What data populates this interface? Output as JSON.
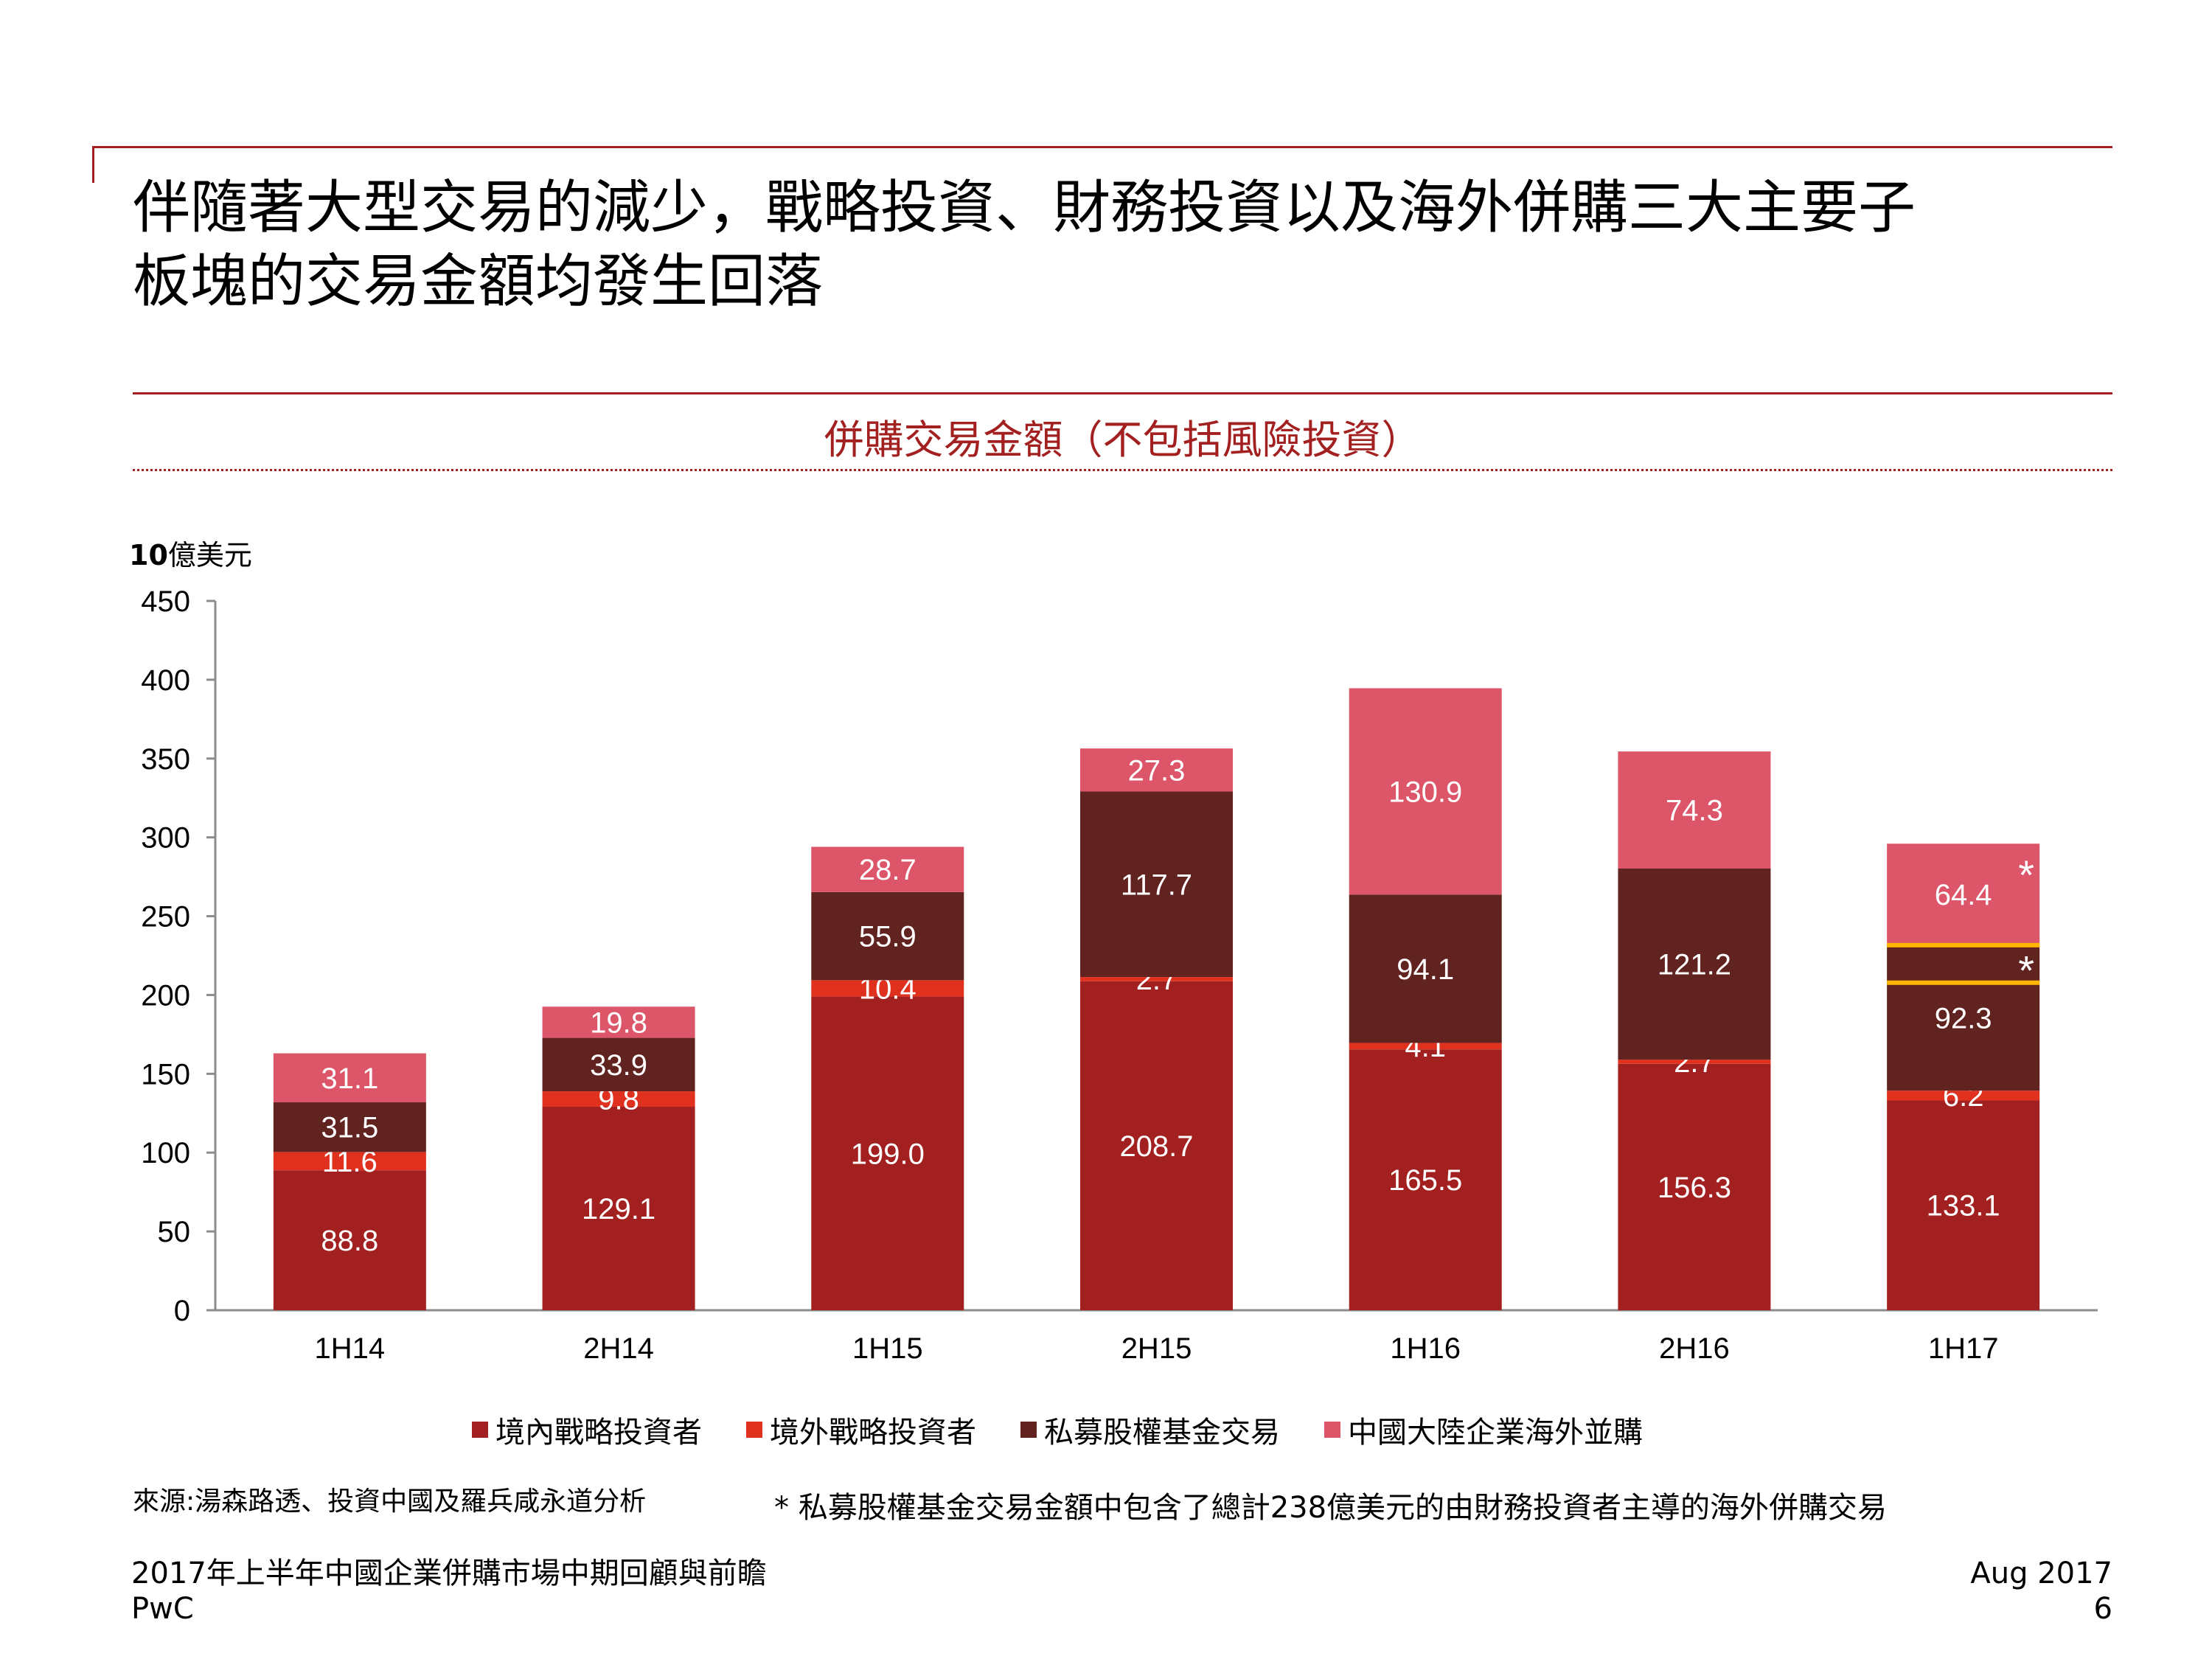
{
  "slide": {
    "title_line1": "伴隨著大型交易的減少，戰略投資、財務投資以及海外併購三大主要子",
    "title_line2": "板塊的交易金額均發生回落",
    "chart_heading": "併購交易金額（不包括風險投資）",
    "source": "來源:湯森路透、投資中國及羅兵咸永道分析",
    "footnote": "* 私募股權基金交易金額中包含了總計238億美元的由財務投資者主導的海外併購交易",
    "footer_title": "2017年上半年中國企業併購市場中期回顧與前瞻",
    "footer_company": "PwC",
    "footer_date": "Aug 2017",
    "page_number": "6"
  },
  "colors": {
    "brand_red": "#a32020",
    "series": [
      "#a32020",
      "#e0301e",
      "#602320",
      "#dc5569"
    ],
    "highlight": "#ffb600"
  },
  "chart_data": {
    "type": "bar",
    "stacked": true,
    "unit_label_bold": "10",
    "unit_label_rest": "億美元",
    "categories": [
      "1H14",
      "2H14",
      "1H15",
      "2H15",
      "1H16",
      "2H16",
      "1H17"
    ],
    "ylim": [
      0,
      450
    ],
    "yticks": [
      0,
      50,
      100,
      150,
      200,
      250,
      300,
      350,
      400,
      450
    ],
    "series": [
      {
        "name": "境內戰略投資者",
        "values": [
          88.8,
          129.1,
          199.0,
          208.7,
          165.5,
          156.3,
          133.1
        ],
        "labels": [
          "88.8",
          "129.1",
          "199.0",
          "208.7",
          "165.5",
          "156.3",
          "133.1"
        ]
      },
      {
        "name": "境外戰略投資者",
        "values": [
          11.6,
          9.8,
          10.4,
          2.7,
          4.1,
          2.7,
          6.2
        ],
        "labels": [
          "11.6",
          "9.8",
          "10.4",
          "2.7",
          "4.1",
          "2.7",
          "6.2"
        ]
      },
      {
        "name": "私募股權基金交易",
        "values": [
          31.5,
          33.9,
          55.9,
          117.7,
          94.1,
          121.2,
          92.3
        ],
        "labels": [
          "31.5",
          "33.9",
          "55.9",
          "117.7",
          "94.1",
          "121.2",
          "92.3"
        ]
      },
      {
        "name": "中國大陸企業海外並購",
        "values": [
          31.1,
          19.8,
          28.7,
          27.3,
          130.9,
          74.3,
          64.4
        ],
        "labels": [
          "31.1",
          "19.8",
          "28.7",
          "27.3",
          "130.9",
          "74.3",
          "64.4"
        ]
      }
    ],
    "highlight_band": {
      "category": "1H17",
      "series": "私募股權基金交易",
      "value": 23.8
    },
    "asterisk_marker": "*"
  }
}
